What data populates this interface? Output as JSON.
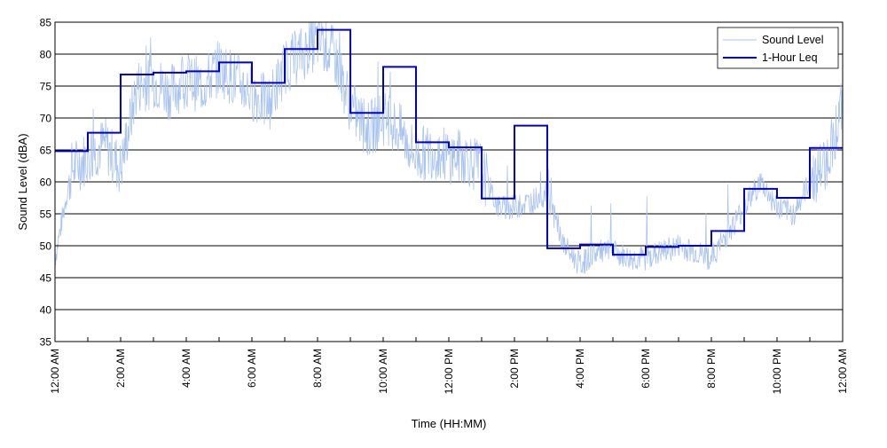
{
  "chart_data": {
    "type": "line",
    "xlabel": "Time (HH:MM)",
    "ylabel": "Sound Level (dBA)",
    "xlim": [
      0,
      24
    ],
    "ylim": [
      35,
      85
    ],
    "y_ticks": [
      35,
      40,
      45,
      50,
      55,
      60,
      65,
      70,
      75,
      80,
      85
    ],
    "x_ticks": [
      0,
      1,
      2,
      3,
      4,
      5,
      6,
      7,
      8,
      9,
      10,
      11,
      12,
      13,
      14,
      15,
      16,
      17,
      18,
      19,
      20,
      21,
      22,
      23,
      24
    ],
    "x_tick_labels": [
      {
        "x": 0,
        "label": "12:00 AM"
      },
      {
        "x": 2,
        "label": "2:00 AM"
      },
      {
        "x": 4,
        "label": "4:00 AM"
      },
      {
        "x": 6,
        "label": "6:00 AM"
      },
      {
        "x": 8,
        "label": "8:00 AM"
      },
      {
        "x": 10,
        "label": "10:00 AM"
      },
      {
        "x": 12,
        "label": "12:00 PM"
      },
      {
        "x": 14,
        "label": "2:00 PM"
      },
      {
        "x": 16,
        "label": "4:00 PM"
      },
      {
        "x": 18,
        "label": "6:00 PM"
      },
      {
        "x": 20,
        "label": "8:00 PM"
      },
      {
        "x": 22,
        "label": "10:00 PM"
      },
      {
        "x": 24,
        "label": "12:00 AM"
      }
    ],
    "grid": "horizontal",
    "legend_position": "top-right",
    "series": [
      {
        "name": "Sound Level",
        "color": "#a9c4f0",
        "style": "thin-noisy-line",
        "x": [
          0,
          0.5,
          1,
          1.5,
          2,
          2.5,
          3,
          3.5,
          4,
          4.5,
          5,
          5.5,
          6,
          6.5,
          7,
          7.5,
          8,
          8.5,
          9,
          9.5,
          10,
          10.5,
          11,
          11.5,
          12,
          12.5,
          13,
          13.5,
          14,
          14.5,
          15,
          15.5,
          16,
          16.5,
          17,
          17.5,
          18,
          18.5,
          19,
          19.5,
          20,
          20.5,
          21,
          21.5,
          22,
          22.5,
          23,
          23.5,
          24
        ],
        "values": [
          48,
          62,
          64,
          66,
          62,
          75,
          76,
          74,
          76,
          75,
          78,
          76,
          74,
          72,
          78,
          80,
          82,
          80,
          72,
          68,
          70,
          68,
          64,
          65,
          64,
          64,
          62,
          56,
          56,
          57,
          58,
          50,
          47,
          49,
          49,
          48,
          48,
          49,
          50,
          49,
          48,
          52,
          56,
          60,
          56,
          55,
          60,
          63,
          72
        ]
      },
      {
        "name": "1-Hour Leq",
        "color": "#0000cc",
        "style": "step",
        "x": [
          0,
          1,
          2,
          3,
          4,
          5,
          6,
          7,
          8,
          9,
          10,
          11,
          12,
          13,
          14,
          15,
          16,
          17,
          18,
          19,
          20,
          21,
          22,
          23
        ],
        "values": [
          64.8,
          67.7,
          76.8,
          77.1,
          77.3,
          78.7,
          75.5,
          80.8,
          83.8,
          70.8,
          78.0,
          66.2,
          65.4,
          57.4,
          68.8,
          49.6,
          50.2,
          48.6,
          49.8,
          50.0,
          52.3,
          58.9,
          57.5,
          65.3
        ]
      }
    ]
  }
}
